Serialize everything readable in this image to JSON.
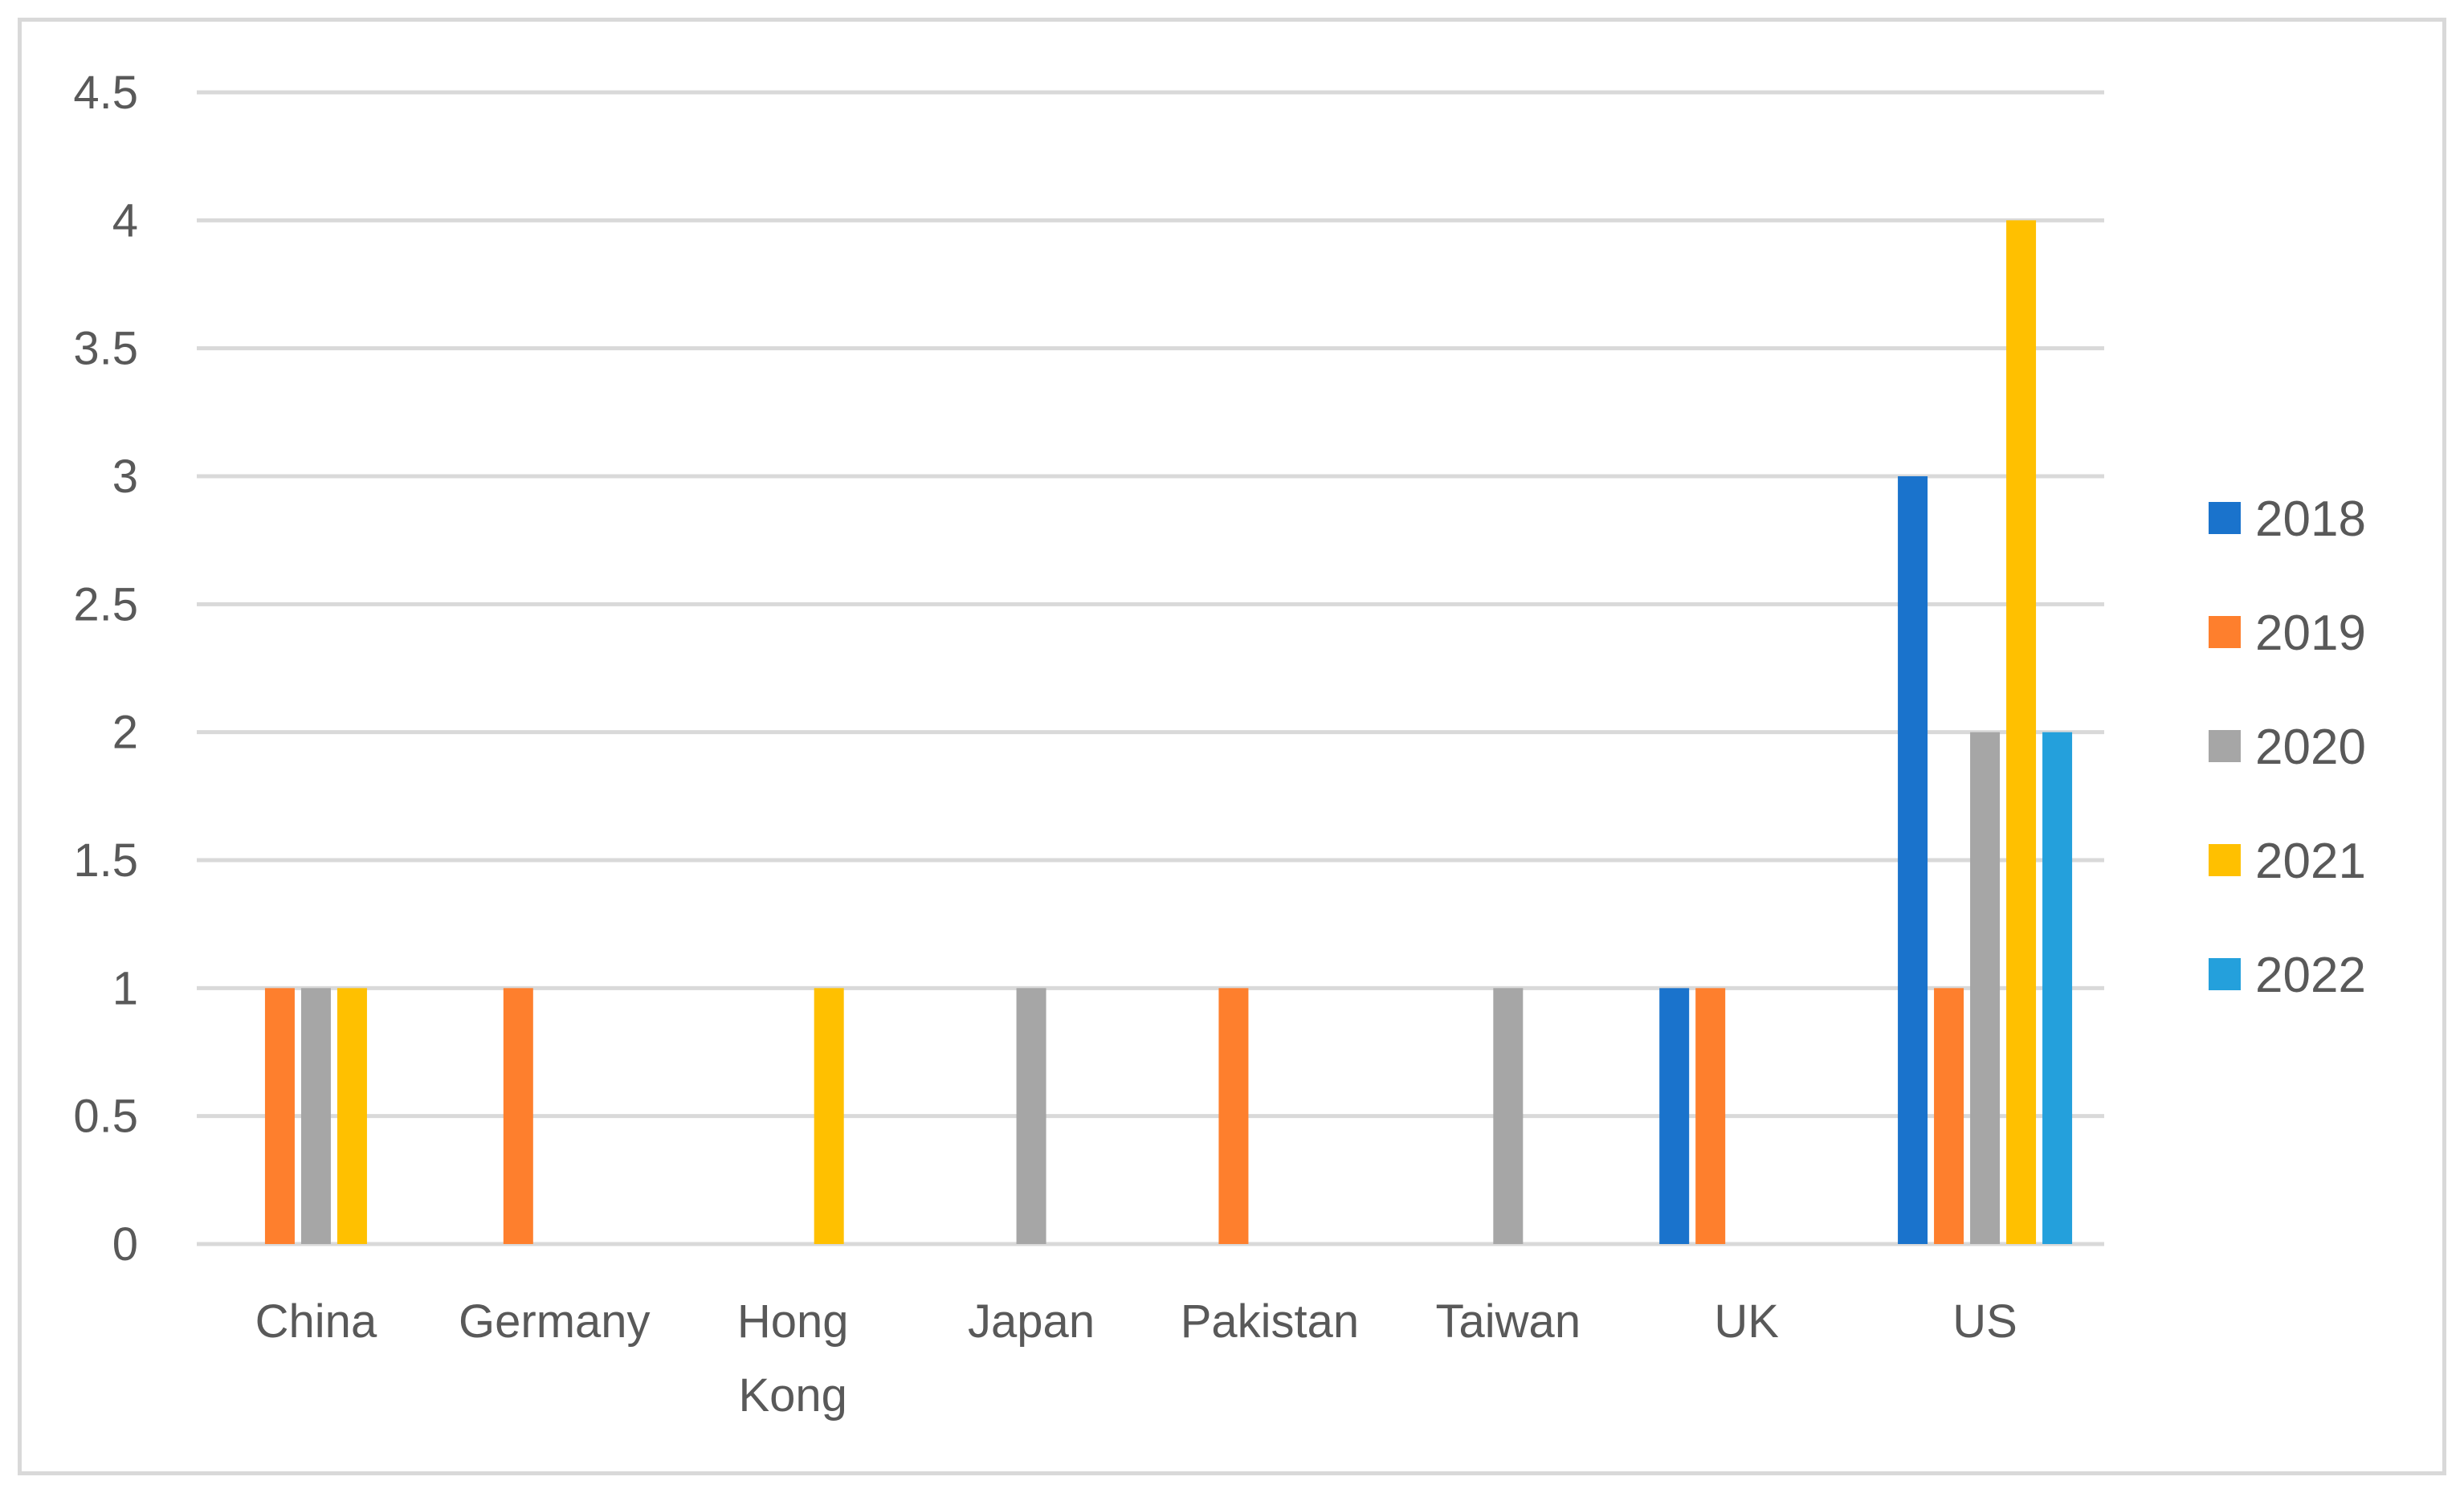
{
  "chart_data": {
    "type": "bar",
    "title": "",
    "xlabel": "",
    "ylabel": "",
    "ylim": [
      0,
      4.5
    ],
    "yticks": [
      "0",
      "0.5",
      "1",
      "1.5",
      "2",
      "2.5",
      "3",
      "3.5",
      "4",
      "4.5"
    ],
    "grid": true,
    "legend_position": "right",
    "categories": [
      [
        "China"
      ],
      [
        "Germany"
      ],
      [
        "Hong",
        "Kong"
      ],
      [
        "Japan"
      ],
      [
        "Pakistan"
      ],
      [
        "Taiwan"
      ],
      [
        "UK"
      ],
      [
        "US"
      ]
    ],
    "series": [
      {
        "name": "2018",
        "color": "#1a73cc",
        "values": [
          0,
          0,
          0,
          0,
          0,
          0,
          1,
          3
        ]
      },
      {
        "name": "2019",
        "color": "#fe7f2d",
        "values": [
          1,
          1,
          0,
          0,
          1,
          0,
          1,
          1
        ]
      },
      {
        "name": "2020",
        "color": "#a6a6a6",
        "values": [
          1,
          0,
          0,
          1,
          0,
          1,
          0,
          2
        ]
      },
      {
        "name": "2021",
        "color": "#ffc000",
        "values": [
          1,
          0,
          1,
          0,
          0,
          0,
          0,
          4
        ]
      },
      {
        "name": "2022",
        "color": "#24a0dc",
        "values": [
          0,
          0,
          0,
          0,
          0,
          0,
          0,
          2
        ]
      }
    ]
  }
}
